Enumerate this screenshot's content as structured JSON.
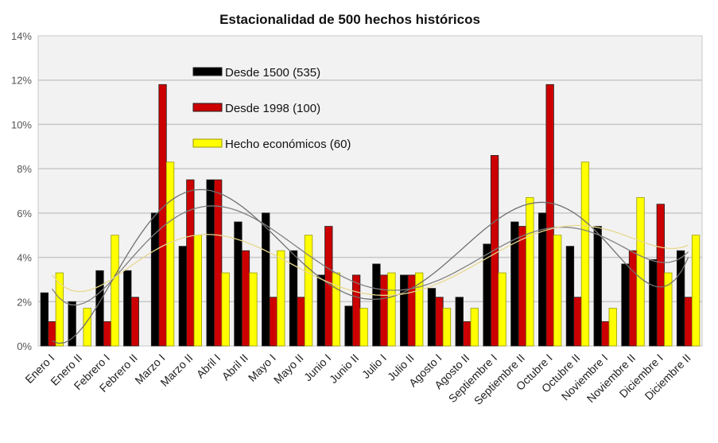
{
  "chart_data": {
    "type": "bar",
    "title": "Estacionalidad de 500 hechos históricos",
    "xlabel": "",
    "ylabel": "",
    "ylim": [
      0,
      14
    ],
    "yticks": [
      "0%",
      "2%",
      "4%",
      "6%",
      "8%",
      "10%",
      "12%",
      "14%"
    ],
    "grid": true,
    "legend_position": "top-left-inside",
    "trendlines": "polynomial",
    "categories": [
      "Enero I",
      "Enero II",
      "Febrero I",
      "Febrero II",
      "Marzo I",
      "Marzo II",
      "Abril I",
      "Abril II",
      "Mayo I",
      "Mayo II",
      "Junio I",
      "Junio II",
      "Julio I",
      "Julio II",
      "Agosto I",
      "Agosto II",
      "Septiembre I",
      "Septiembre II",
      "Octubre I",
      "Octubre II",
      "Noviembre I",
      "Noviembre II",
      "Diciembre I",
      "Diciembre II"
    ],
    "series": [
      {
        "name": "Desde 1500 (535)",
        "color": "#000000",
        "trend_color": "#808080",
        "values": [
          2.4,
          2.0,
          3.4,
          3.4,
          6.0,
          4.5,
          7.5,
          5.6,
          6.0,
          4.3,
          3.2,
          1.8,
          3.7,
          3.2,
          2.6,
          2.2,
          4.6,
          5.6,
          6.0,
          4.5,
          5.4,
          3.7,
          3.9,
          4.3
        ]
      },
      {
        "name": "Desde 1998 (100)",
        "color": "#cc0000",
        "trend_color": "#707070",
        "values": [
          1.1,
          0,
          1.1,
          2.2,
          11.8,
          7.5,
          7.5,
          4.3,
          2.2,
          2.2,
          5.4,
          3.2,
          3.2,
          3.2,
          2.2,
          1.1,
          8.6,
          5.4,
          11.8,
          2.2,
          1.1,
          4.3,
          6.4,
          2.2
        ]
      },
      {
        "name": "Hecho económicos (60)",
        "color": "#ffff00",
        "trend_color": "#e8d890",
        "values": [
          3.3,
          1.7,
          5.0,
          0,
          8.3,
          5.0,
          3.3,
          3.3,
          4.3,
          5.0,
          3.3,
          1.7,
          3.3,
          3.3,
          1.7,
          1.7,
          3.3,
          6.7,
          5.0,
          8.3,
          1.7,
          6.7,
          3.3,
          5.0
        ]
      }
    ]
  }
}
